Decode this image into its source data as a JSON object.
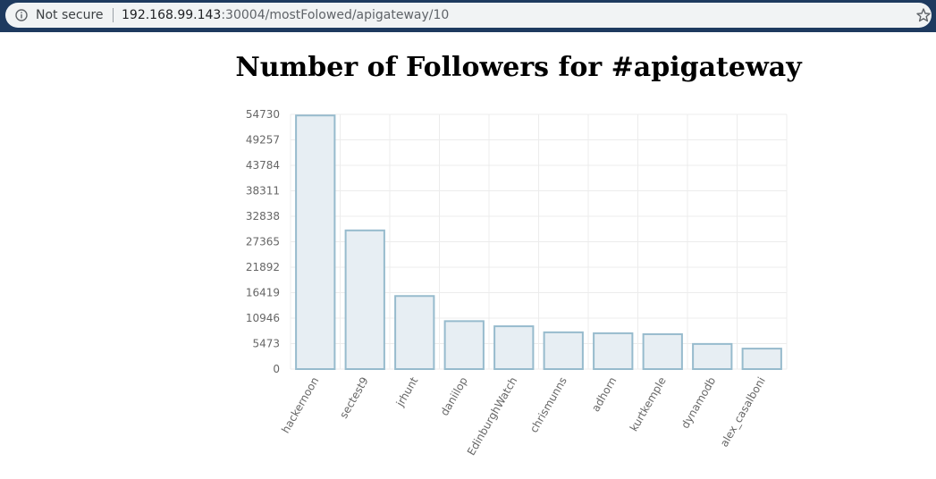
{
  "browser": {
    "security_label": "Not secure",
    "url_host": "192.168.99.143",
    "url_rest": ":30004/mostFolowed/apigateway/10"
  },
  "page": {
    "title": "Number of Followers for #apigateway"
  },
  "chart_data": {
    "type": "bar",
    "title": "Number of Followers for #apigateway",
    "xlabel": "",
    "ylabel": "",
    "categories": [
      "hackernoon",
      "sectest9",
      "jrhunt",
      "daniilop",
      "EdinburghWatch",
      "chrismunns",
      "adhorn",
      "kurtkemple",
      "dynamodb",
      "alex_casalboni"
    ],
    "values": [
      54500,
      29800,
      15700,
      10300,
      9200,
      7900,
      7700,
      7500,
      5400,
      4400
    ],
    "yticks": [
      "0",
      "5473",
      "10946",
      "16419",
      "21892",
      "27365",
      "32838",
      "38311",
      "43784",
      "49257",
      "54730"
    ],
    "ylim": [
      0,
      54730
    ],
    "grid": true,
    "bar_fill": "#e7eef3",
    "bar_stroke": "#97bbcd"
  }
}
